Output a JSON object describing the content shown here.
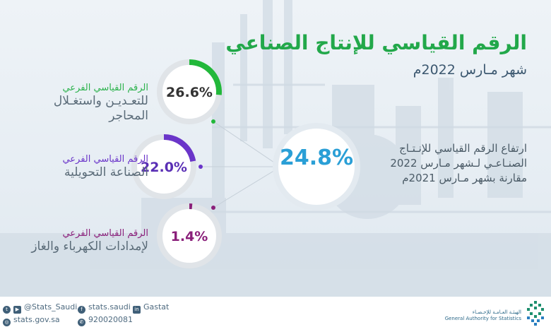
{
  "title": "الرقم القياسي للإنتاج الصناعي",
  "subtitle": "شهر مـارس 2022م",
  "headline": {
    "lines": [
      "ارتفاع الرقم القياسي للإنـتـاج",
      "الصنـاعـي لـشهر مـارس 2022",
      "مقارنة بشهر مـارس 2021م"
    ],
    "value": "24.8%",
    "color": "#2a9fd6"
  },
  "indices": [
    {
      "label_sub": "الرقم القياسي الفرعي",
      "label_main": [
        "للتعـديـن واستغـلال",
        "المحاجر"
      ],
      "value": "26.6%",
      "fraction": 0.266,
      "color": "#22b83a",
      "text_color": "#333333"
    },
    {
      "label_sub": "الرقم القياسي الفرعي",
      "label_main": [
        "الصناعة التحويلية"
      ],
      "value": "22.0%",
      "fraction": 0.22,
      "color": "#6a35c9",
      "text_color": "#5a2fb5"
    },
    {
      "label_sub": "الرقم القياسي الفرعي",
      "label_main": [
        "لإمدادات الكهرباء والغاز"
      ],
      "value": "1.4%",
      "fraction": 0.014,
      "color": "#8a1f7a",
      "text_color": "#8a1f7a"
    }
  ],
  "footer": {
    "twitter": "@Stats_Saudi",
    "facebook": "stats.saudi",
    "linkedin": "Gastat",
    "website": "stats.gov.sa",
    "phone": "920020081",
    "org_ar": "الهيئـة العـامـة للإحـصـاء",
    "org_en": "General Authority for Statistics"
  },
  "icons": [
    "twitter-icon",
    "youtube-icon",
    "facebook-icon",
    "linkedin-icon",
    "globe-icon",
    "phone-icon"
  ]
}
